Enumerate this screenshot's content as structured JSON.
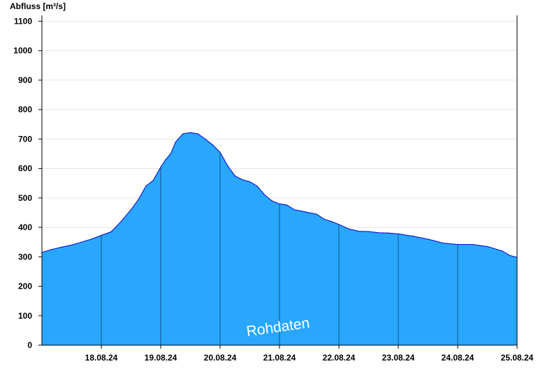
{
  "chart_data": {
    "type": "area",
    "ylabel": "Abfluss [m³/s]",
    "ylim": [
      0,
      1120
    ],
    "yticks": [
      0,
      100,
      200,
      300,
      400,
      500,
      600,
      700,
      800,
      900,
      1000,
      1100
    ],
    "xlim": [
      "17.08.24 12:00",
      "25.08.24 12:00"
    ],
    "day_separators": [
      "18.08.24 12:00",
      "19.08.24 12:00",
      "20.08.24 12:00",
      "21.08.24 12:00",
      "22.08.24 12:00",
      "23.08.24 12:00",
      "24.08.24 12:00",
      "25.08.24 12:00"
    ],
    "xtick_labels": [
      "18.08.24",
      "19.08.24",
      "20.08.24",
      "21.08.24",
      "22.08.24",
      "23.08.24",
      "24.08.24",
      "25.08.24"
    ],
    "grid": true,
    "legend": "none",
    "annotation": "Rohdaten",
    "colors": {
      "fill": "#29a7ff",
      "line": "#0000cc",
      "grid": "#e6e6e6",
      "separator": "#1a4f80"
    },
    "series": [
      {
        "x": [
          "17.08.24 12:00",
          "17.08.24 16:00",
          "17.08.24 20:00",
          "18.08.24 00:00",
          "18.08.24 04:00",
          "18.08.24 08:00",
          "18.08.24 12:00",
          "18.08.24 16:00",
          "18.08.24 20:00",
          "19.08.24 00:00",
          "19.08.24 03:00",
          "19.08.24 06:00",
          "19.08.24 09:00",
          "19.08.24 12:00",
          "19.08.24 14:00",
          "19.08.24 16:00",
          "19.08.24 18:00",
          "19.08.24 21:00",
          "20.08.24 00:00",
          "20.08.24 03:00",
          "20.08.24 06:00",
          "20.08.24 09:00",
          "20.08.24 12:00",
          "20.08.24 15:00",
          "20.08.24 18:00",
          "20.08.24 21:00",
          "21.08.24 00:00",
          "21.08.24 03:00",
          "21.08.24 06:00",
          "21.08.24 09:00",
          "21.08.24 12:00",
          "21.08.24 15:00",
          "21.08.24 18:00",
          "21.08.24 21:00",
          "22.08.24 00:00",
          "22.08.24 03:00",
          "22.08.24 06:00",
          "22.08.24 09:00",
          "22.08.24 12:00",
          "22.08.24 16:00",
          "22.08.24 20:00",
          "23.08.24 00:00",
          "23.08.24 04:00",
          "23.08.24 08:00",
          "23.08.24 12:00",
          "23.08.24 18:00",
          "24.08.24 00:00",
          "24.08.24 06:00",
          "24.08.24 12:00",
          "24.08.24 18:00",
          "25.08.24 00:00",
          "25.08.24 06:00",
          "25.08.24 09:00",
          "25.08.24 12:00"
        ],
        "y": [
          315,
          325,
          333,
          340,
          350,
          360,
          373,
          385,
          420,
          460,
          495,
          540,
          560,
          605,
          630,
          650,
          690,
          718,
          722,
          718,
          700,
          680,
          655,
          610,
          575,
          562,
          555,
          540,
          510,
          490,
          480,
          476,
          460,
          455,
          450,
          445,
          428,
          420,
          410,
          395,
          387,
          386,
          382,
          381,
          378,
          370,
          360,
          347,
          342,
          342,
          335,
          320,
          305,
          298
        ]
      }
    ]
  }
}
